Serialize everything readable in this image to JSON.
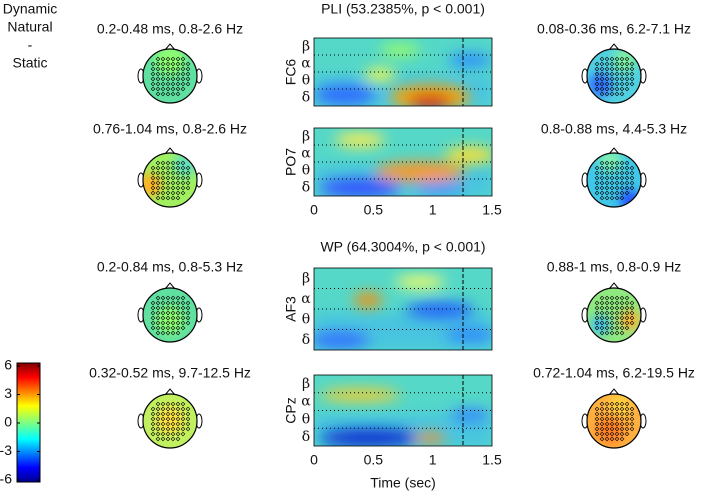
{
  "header": {
    "lines": [
      "Dynamic",
      "Natural",
      "-",
      "Static"
    ]
  },
  "panels": [
    {
      "title": "PLI (53.2385%, p < 0.001)",
      "rows": [
        {
          "channel": "FC6",
          "left": "0.2-0.48 ms, 0.8-2.6 Hz",
          "right": "0.08-0.36 ms, 6.2-7.1 Hz"
        },
        {
          "channel": "PO7",
          "left": "0.76-1.04 ms, 0.8-2.6 Hz",
          "right": "0.8-0.88 ms, 4.4-5.3 Hz"
        }
      ]
    },
    {
      "title": "WP (64.3004%, p < 0.001)",
      "rows": [
        {
          "channel": "AF3",
          "left": "0.2-0.84 ms, 0.8-5.3 Hz",
          "right": "0.88-1 ms, 0.8-0.9 Hz"
        },
        {
          "channel": "CPz",
          "left": "0.32-0.52 ms, 9.7-12.5 Hz",
          "right": "0.72-1.04 ms, 6.2-19.5 Hz"
        }
      ]
    }
  ],
  "band_labels": [
    "β",
    "α",
    "θ",
    "δ"
  ],
  "time_ticks": [
    "0",
    "0.5",
    "1",
    "1.5"
  ],
  "time_label": "Time (sec)",
  "colorbar_ticks": [
    "6",
    "3",
    "0",
    "-3",
    "-6"
  ]
}
